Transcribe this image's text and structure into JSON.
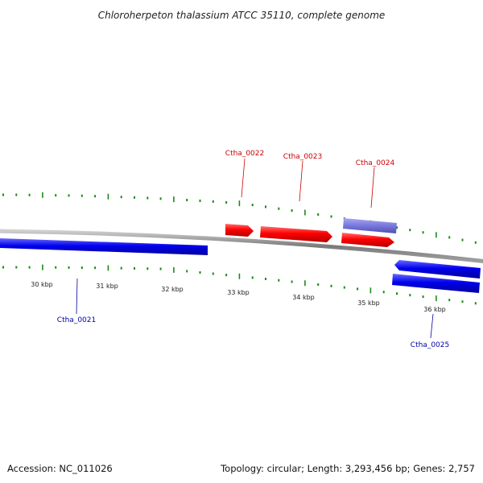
{
  "title": "Chloroherpeton thalassium ATCC 35110, complete genome",
  "footer": {
    "accession": "Accession: NC_011026",
    "stats": "Topology: circular; Length: 3,293,456 bp; Genes: 2,757"
  },
  "colors": {
    "forward_gene": "#ff0000",
    "reverse_gene": "#0000ee",
    "highlight_gene": "#7777dd",
    "tick": "#1a8a1a",
    "backbone": "#8a8a8a",
    "forward_label": "#cc0000",
    "reverse_label": "#0000aa"
  },
  "scale": {
    "unit": "kbp",
    "labels": [
      "30 kbp",
      "31 kbp",
      "32 kbp",
      "33 kbp",
      "34 kbp",
      "35 kbp",
      "36 kbp"
    ]
  },
  "genes": [
    {
      "id": "Ctha_0021",
      "strand": "reverse",
      "highlight": false
    },
    {
      "id": "Ctha_0022",
      "strand": "forward",
      "highlight": false
    },
    {
      "id": "Ctha_0023",
      "strand": "forward",
      "highlight": false
    },
    {
      "id": "Ctha_0024",
      "strand": "forward",
      "highlight": true
    },
    {
      "id": "Ctha_0024",
      "strand": "forward",
      "highlight": false
    },
    {
      "id": "Ctha_0025",
      "strand": "reverse",
      "highlight": false
    },
    {
      "id": "Ctha_0025",
      "strand": "reverse",
      "highlight": false
    }
  ],
  "gene_labels": [
    "Ctha_0021",
    "Ctha_0022",
    "Ctha_0023",
    "Ctha_0024",
    "Ctha_0025"
  ]
}
